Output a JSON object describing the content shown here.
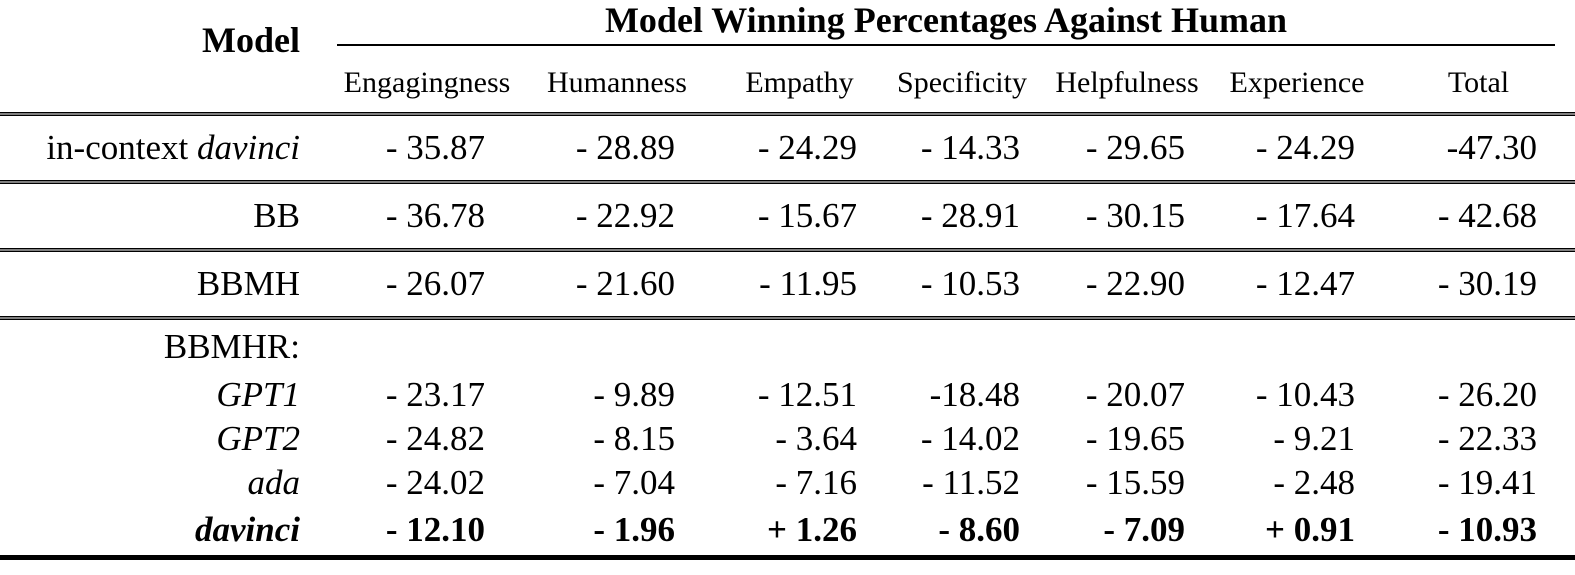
{
  "colors": {
    "background": "#ffffff",
    "text": "#000000",
    "rule": "#000000"
  },
  "header": {
    "model_label": "Model",
    "span_title": "Model Winning Percentages Against Human"
  },
  "table": {
    "columns": [
      "Engagingness",
      "Humanness",
      "Empathy",
      "Specificity",
      "Helpfulness",
      "Experience",
      "Total"
    ],
    "rows": [
      {
        "id": "in-context-davinci",
        "prefix": "in-context ",
        "label": "davinci",
        "italic": true,
        "bold": false,
        "size": "r-tall",
        "sep_after": true,
        "cells": [
          "- 35.87",
          "- 28.89",
          "- 24.29",
          "- 14.33",
          "- 29.65",
          "- 24.29",
          "-47.30"
        ]
      },
      {
        "id": "bb",
        "prefix": "",
        "label": "BB",
        "italic": false,
        "bold": false,
        "size": "r-tall",
        "sep_after": true,
        "cells": [
          "- 36.78",
          "- 22.92",
          "- 15.67",
          "- 28.91",
          "- 30.15",
          "- 17.64",
          "- 42.68"
        ]
      },
      {
        "id": "bbmh",
        "prefix": "",
        "label": "BBMH",
        "italic": false,
        "bold": false,
        "size": "r-tall",
        "sep_after": true,
        "cells": [
          "- 26.07",
          "- 21.60",
          "- 11.95",
          "- 10.53",
          "- 22.90",
          "- 12.47",
          "- 30.19"
        ]
      },
      {
        "id": "bbmhr-group",
        "prefix": "",
        "label": "BBMHR:",
        "italic": false,
        "bold": false,
        "size": "r-group",
        "sep_after": false,
        "cells": [
          "",
          "",
          "",
          "",
          "",
          "",
          ""
        ]
      },
      {
        "id": "gpt1",
        "prefix": "",
        "label": "GPT1",
        "italic": true,
        "bold": false,
        "size": "r-short",
        "sep_after": false,
        "cells": [
          "- 23.17",
          "- 9.89",
          "- 12.51",
          "-18.48",
          "- 20.07",
          "- 10.43",
          "- 26.20"
        ]
      },
      {
        "id": "gpt2",
        "prefix": "",
        "label": "GPT2",
        "italic": true,
        "bold": false,
        "size": "r-short",
        "sep_after": false,
        "cells": [
          "- 24.82",
          "- 8.15",
          "- 3.64",
          "- 14.02",
          "- 19.65",
          "- 9.21",
          "- 22.33"
        ]
      },
      {
        "id": "ada",
        "prefix": "",
        "label": "ada",
        "italic": true,
        "bold": false,
        "size": "r-short",
        "sep_after": false,
        "cells": [
          "- 24.02",
          "- 7.04",
          "- 7.16",
          "- 11.52",
          "- 15.59",
          "- 2.48",
          "- 19.41"
        ]
      },
      {
        "id": "davinci",
        "prefix": "",
        "label": "davinci",
        "italic": true,
        "bold": true,
        "size": "r-last",
        "sep_after": false,
        "cells": [
          "- 12.10",
          "- 1.96",
          "+ 1.26",
          "- 8.60",
          "- 7.09",
          "+ 0.91",
          "- 10.93"
        ]
      }
    ]
  }
}
